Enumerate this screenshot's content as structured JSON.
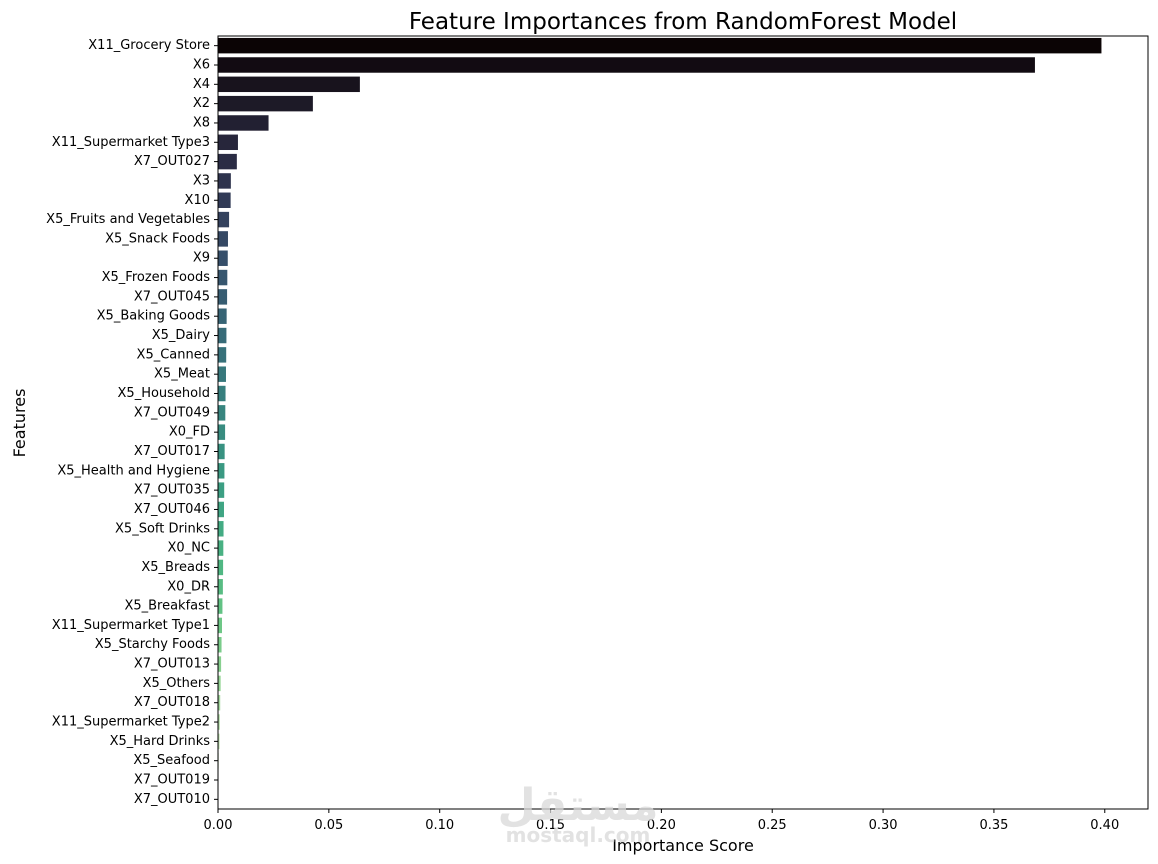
{
  "chart_data": {
    "type": "bar",
    "orientation": "horizontal",
    "title": "Feature Importances from RandomForest Model",
    "xlabel": "Importance Score",
    "ylabel": "Features",
    "xlim": [
      0,
      0.4195
    ],
    "xticks": [
      "0.00",
      "0.05",
      "0.10",
      "0.15",
      "0.20",
      "0.25",
      "0.30",
      "0.35",
      "0.40"
    ],
    "xtick_values": [
      0,
      0.05,
      0.1,
      0.15,
      0.2,
      0.25,
      0.3,
      0.35,
      0.4
    ],
    "grid": false,
    "palette": "mako",
    "categories": [
      "X11_Grocery Store",
      "X6",
      "X4",
      "X2",
      "X8",
      "X11_Supermarket Type3",
      "X7_OUT027",
      "X3",
      "X10",
      "X5_Fruits and Vegetables",
      "X5_Snack Foods",
      "X9",
      "X5_Frozen Foods",
      "X7_OUT045",
      "X5_Baking Goods",
      "X5_Dairy",
      "X5_Canned",
      "X5_Meat",
      "X5_Household",
      "X7_OUT049",
      "X0_FD",
      "X7_OUT017",
      "X5_Health and Hygiene",
      "X7_OUT035",
      "X7_OUT046",
      "X5_Soft Drinks",
      "X0_NC",
      "X5_Breads",
      "X0_DR",
      "X5_Breakfast",
      "X11_Supermarket Type1",
      "X5_Starchy Foods",
      "X7_OUT013",
      "X5_Others",
      "X7_OUT018",
      "X11_Supermarket Type2",
      "X5_Hard Drinks",
      "X5_Seafood",
      "X7_OUT019",
      "X7_OUT010"
    ],
    "values": [
      0.3985,
      0.3685,
      0.064,
      0.0428,
      0.0228,
      0.009,
      0.0085,
      0.0058,
      0.0057,
      0.005,
      0.0045,
      0.0044,
      0.0042,
      0.0041,
      0.0039,
      0.0038,
      0.0037,
      0.0036,
      0.0034,
      0.0033,
      0.0032,
      0.003,
      0.0029,
      0.0028,
      0.0027,
      0.0025,
      0.0024,
      0.0023,
      0.0022,
      0.002,
      0.0018,
      0.0016,
      0.0014,
      0.0012,
      0.001,
      0.0008,
      0.0007,
      0.0003,
      0.0001,
      0.0001
    ],
    "colors": [
      "#0b0405",
      "#120b12",
      "#18131d",
      "#1d1a27",
      "#222032",
      "#27263b",
      "#2a2c44",
      "#2e334d",
      "#313a56",
      "#33415d",
      "#354864",
      "#364f6a",
      "#37566e",
      "#375d72",
      "#376475",
      "#376b78",
      "#37717a",
      "#37787c",
      "#377f7e",
      "#38857f",
      "#388c80",
      "#389281",
      "#3a9982",
      "#3c9f83",
      "#3fa583",
      "#43ab83",
      "#49b183",
      "#50b783",
      "#58bc83",
      "#62c284",
      "#6dc786",
      "#7acc8a",
      "#88d08f",
      "#96d596",
      "#a4d99e",
      "#b2dea8",
      "#bfe3b2",
      "#cbe8bd",
      "#d7edc8",
      "#def5e5"
    ]
  },
  "watermark": {
    "arabic_text": "مستقل",
    "latin_text": "mostaql.com"
  }
}
